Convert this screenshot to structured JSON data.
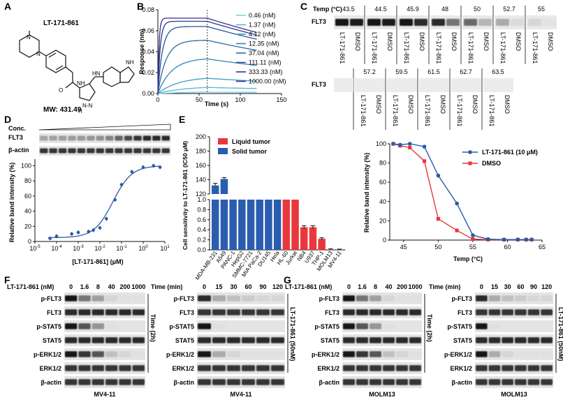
{
  "panels": {
    "A": "A",
    "B": "B",
    "C": "C",
    "D": "D",
    "E": "E",
    "F": "F",
    "G": "G"
  },
  "panel_a": {
    "compound": "LT-171-861",
    "mw": "MW: 431.49",
    "atoms": {
      "n": "N",
      "nh": "NH",
      "o": "O",
      "h": "H",
      "hn": "HN",
      "nn": "N-N"
    }
  },
  "panel_c": {
    "temp_label": "Temp (°C)",
    "row_label": "FLT3",
    "top_temps": [
      "43.5",
      "44.5",
      "45.9",
      "48",
      "50",
      "52.7",
      "55"
    ],
    "bottom_temps": [
      "57.2",
      "59.5",
      "61.5",
      "62.7",
      "63.5"
    ],
    "lane_labels": [
      "LT-171-861",
      "DMSO"
    ]
  },
  "panel_d_blot": {
    "conc_label": "Conc.",
    "rows": [
      "FLT3",
      "β-actin"
    ]
  },
  "panel_f": {
    "left_header": "LT-171-861 (nM)",
    "left_conc": [
      "0",
      "1.6",
      "8",
      "40",
      "200",
      "1000"
    ],
    "right_header": "Time (min)",
    "right_times": [
      "0",
      "15",
      "30",
      "60",
      "90",
      "120"
    ],
    "rows": [
      "p-FLT3",
      "FLT3",
      "p-STAT5",
      "STAT5",
      "p-ERK1/2",
      "ERK1/2",
      "β-actin"
    ],
    "side_left": "Time (2h)",
    "side_right": "LT-171-861 (50nM)",
    "cell_line": "MV4-11"
  },
  "panel_g": {
    "left_header": "LT-171-861 (nM)",
    "left_conc": [
      "0",
      "1.6",
      "8",
      "40",
      "200",
      "1000"
    ],
    "right_header": "Time (min)",
    "right_times": [
      "0",
      "15",
      "30",
      "60",
      "90",
      "120"
    ],
    "rows": [
      "p-FLT3",
      "FLT3",
      "p-STAT5",
      "STAT5",
      "p-ERK1/2",
      "ERK1/2",
      "β-actin"
    ],
    "side_left": "Time (2h)",
    "side_right": "LT-171-861 (50nM)",
    "cell_line": "MOLM13"
  },
  "chart_data": [
    {
      "id": "B",
      "type": "line",
      "title": "",
      "xlabel": "Time (s)",
      "ylabel": "Response (nm)",
      "xlim": [
        0,
        150
      ],
      "ylim": [
        0,
        0.08
      ],
      "xticks": [
        0,
        50,
        100,
        150
      ],
      "yticks": [
        0.0,
        0.02,
        0.04,
        0.06,
        0.08
      ],
      "ytick_labels": [
        "0.00",
        "0.02",
        "0.04",
        "0.06",
        "0.08"
      ],
      "injection_end": 60,
      "series": [
        {
          "name": "0.46 (nM)",
          "plateau": 0.002,
          "kon": 0.02,
          "color": "#7fd0e6"
        },
        {
          "name": "1.37 (nM)",
          "plateau": 0.007,
          "kon": 0.03,
          "color": "#56b4d6"
        },
        {
          "name": "4.12 (nM)",
          "plateau": 0.016,
          "kon": 0.04,
          "color": "#3a9dc8"
        },
        {
          "name": "12.35 (nM)",
          "plateau": 0.034,
          "kon": 0.06,
          "color": "#2f84b8"
        },
        {
          "name": "37.04 (nM)",
          "plateau": 0.051,
          "kon": 0.1,
          "color": "#2a6aa6"
        },
        {
          "name": "111.11 (nM)",
          "plateau": 0.064,
          "kon": 0.18,
          "color": "#27519a"
        },
        {
          "name": "333.33 (nM)",
          "plateau": 0.069,
          "kon": 0.35,
          "color": "#253a8c"
        },
        {
          "name": "1000.00 (nM)",
          "plateau": 0.072,
          "kon": 0.7,
          "color": "#3a2f84"
        }
      ]
    },
    {
      "id": "D",
      "type": "scatter",
      "title": "",
      "xlabel": "[LT-171-861] (μM)",
      "ylabel": "Relative band intensity (%)",
      "xlim_log10": [
        -5,
        1
      ],
      "ylim": [
        0,
        100
      ],
      "xtick_exps": [
        -5,
        -4,
        -3,
        -2,
        -1,
        0,
        1
      ],
      "yticks": [
        0,
        20,
        40,
        60,
        80,
        100
      ],
      "x": [
        5e-05,
        0.0001,
        0.0005,
        0.001,
        0.003,
        0.005,
        0.01,
        0.02,
        0.05,
        0.1,
        0.3,
        1,
        3,
        6
      ],
      "y": [
        4,
        7,
        10,
        12,
        13,
        15,
        18,
        30,
        55,
        75,
        92,
        98,
        100,
        98
      ],
      "fit": {
        "bottom": 5,
        "top": 100,
        "ec50": 0.04,
        "hill": 1.0
      },
      "color": "#2b5aa8"
    },
    {
      "id": "E",
      "type": "bar",
      "title": "",
      "ylabel": "Cell sensitivity to LT-171-861 (IC50 μM)",
      "legend": [
        {
          "name": "Liquid tumor",
          "color": "#e8383d"
        },
        {
          "name": "Solid tumor",
          "color": "#2a5db0"
        }
      ],
      "lower_ylim": [
        0,
        1
      ],
      "lower_yticks": [
        0.0,
        0.2,
        0.4,
        0.6,
        0.8,
        1.0
      ],
      "upper_ylim": [
        120,
        200
      ],
      "upper_yticks": [
        120,
        140,
        160,
        180,
        200
      ],
      "categories": [
        "MDA-MB-231",
        "A549",
        "PANC-1",
        "HepG2",
        "SMMC-7721",
        "MIA PaCa-2",
        "DU145",
        "Hela",
        "HL-60",
        "Jurkat",
        "NB4",
        "U937",
        "THP-1",
        "MOLM13",
        "MV4-11"
      ],
      "values": [
        132,
        141,
        1,
        1,
        1,
        1,
        1,
        1,
        1,
        1,
        0.45,
        0.45,
        0.22,
        0.01,
        0.005
      ],
      "errors": [
        3,
        2,
        0,
        0,
        0,
        0,
        0,
        0,
        0,
        0,
        0.03,
        0.03,
        0.02,
        0.01,
        0.01
      ],
      "types": [
        "solid",
        "solid",
        "solid",
        "solid",
        "solid",
        "solid",
        "solid",
        "solid",
        "liquid",
        "liquid",
        "liquid",
        "liquid",
        "liquid",
        "liquid",
        "liquid"
      ]
    },
    {
      "id": "C_curve",
      "type": "line",
      "title": "",
      "xlabel": "Temp (°C)",
      "ylabel": "Relative band intensity (%)",
      "xlim": [
        43,
        65
      ],
      "ylim": [
        0,
        100
      ],
      "xticks": [
        45,
        50,
        55,
        60,
        65
      ],
      "yticks": [
        0,
        20,
        40,
        60,
        80,
        100
      ],
      "legend_position": "top-right",
      "series": [
        {
          "name": "LT-171-861 (10 μM)",
          "color": "#2b5aa8",
          "marker": "circle",
          "x": [
            43.5,
            44.5,
            45.9,
            48,
            50,
            52.7,
            55,
            57.2,
            59.5,
            61.5,
            62.7,
            63.5
          ],
          "y": [
            100,
            99,
            100,
            97,
            67,
            38,
            5,
            1,
            0.5,
            0.5,
            0.5,
            0.5
          ]
        },
        {
          "name": "DMSO",
          "color": "#e8383d",
          "marker": "square",
          "x": [
            43.5,
            44.5,
            45.9,
            48,
            50,
            52.7,
            55,
            57.2,
            59.5,
            61.5,
            62.7,
            63.5
          ],
          "y": [
            100,
            98,
            96,
            82,
            22,
            10,
            1,
            0.5,
            0.5,
            0.5,
            0.5,
            0.5
          ]
        }
      ]
    }
  ]
}
